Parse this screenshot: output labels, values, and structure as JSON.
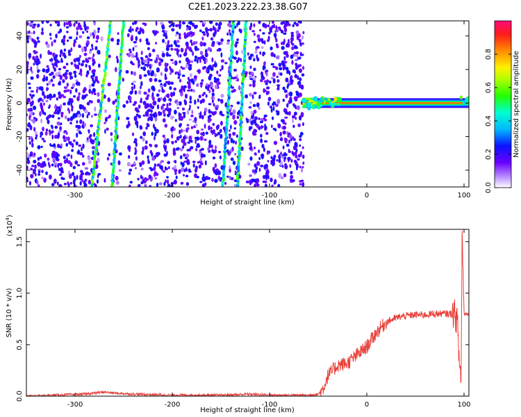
{
  "figure": {
    "title": "C2E1.2023.222.23.38.G07"
  },
  "chart_data": [
    {
      "type": "heatmap",
      "xlabel": "Height of straight line (km)",
      "ylabel": "Frequency (Hz)",
      "xlim": [
        -350,
        105
      ],
      "ylim": [
        -50,
        49
      ],
      "xticks": [
        -300,
        -200,
        -100,
        0,
        100
      ],
      "yticks": [
        -40,
        -20,
        0,
        20,
        40
      ],
      "colorbar": {
        "label": "Normalized spectral amplitude",
        "range": [
          0,
          1
        ],
        "ticks": [
          "0.0",
          "0.2",
          "0.4",
          "0.6",
          "0.8"
        ],
        "tick_values": [
          0.0,
          0.2,
          0.4,
          0.6,
          0.8
        ]
      },
      "regions": {
        "noise_extent": [
          -350,
          -65
        ],
        "tone_extent": [
          -65,
          105
        ],
        "tone_frequency": 0,
        "tone_amplitude": 0.85
      },
      "streaks": [
        {
          "x_bottom": -283,
          "x_top": -263,
          "amplitude": 0.55
        },
        {
          "x_bottom": -262,
          "x_top": -250,
          "amplitude": 0.5
        },
        {
          "x_bottom": -148,
          "x_top": -137,
          "amplitude": 0.45
        },
        {
          "x_bottom": -133,
          "x_top": -124,
          "amplitude": 0.5
        }
      ]
    },
    {
      "type": "line",
      "xlabel": "Height of straight line (km)",
      "ylabel": "SNR (10 * v/v)",
      "multiplier_label": "(x10",
      "multiplier_exp": "4",
      "multiplier_close": ")",
      "xlim": [
        -350,
        105
      ],
      "ylim": [
        0,
        1.62
      ],
      "xticks": [
        -300,
        -200,
        -100,
        0,
        100
      ],
      "yticks": [
        "0.0",
        "0.5",
        "1.0",
        "1.5"
      ],
      "ytick_values": [
        0.0,
        0.5,
        1.0,
        1.5
      ],
      "series": [
        {
          "color": "#e8403a",
          "x": [
            -350,
            -320,
            -290,
            -270,
            -260,
            -240,
            -200,
            -150,
            -120,
            -100,
            -80,
            -60,
            -50,
            -45,
            -40,
            -30,
            -20,
            -10,
            0,
            10,
            20,
            30,
            40,
            50,
            60,
            70,
            80,
            85,
            90,
            93,
            95,
            97,
            98,
            100,
            105
          ],
          "y": [
            0.0,
            0.01,
            0.02,
            0.04,
            0.03,
            0.02,
            0.01,
            0.01,
            0.02,
            0.01,
            0.01,
            0.01,
            0.02,
            0.07,
            0.2,
            0.3,
            0.32,
            0.4,
            0.48,
            0.62,
            0.72,
            0.76,
            0.78,
            0.79,
            0.79,
            0.8,
            0.8,
            0.8,
            0.8,
            0.74,
            0.35,
            0.15,
            1.6,
            0.8,
            0.8
          ]
        }
      ]
    }
  ]
}
